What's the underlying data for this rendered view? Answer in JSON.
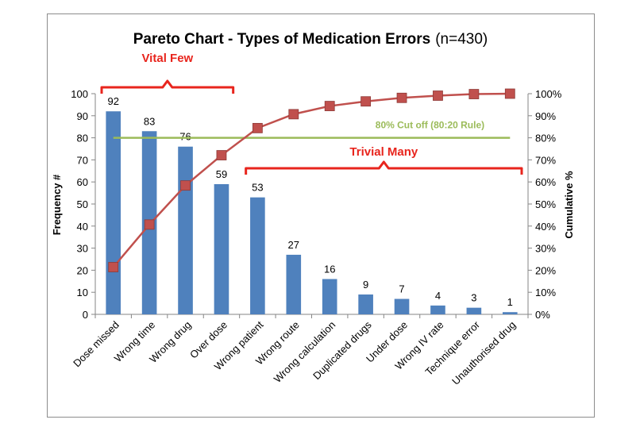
{
  "chart_data": {
    "type": "bar",
    "title": "Pareto Chart - Types of Medication Errors",
    "subtitle": "(n=430)",
    "ylabel": "Frequency #",
    "y2label": "Cumulative %",
    "xlabel": "",
    "ylim": [
      0,
      100
    ],
    "y2lim": [
      0,
      100
    ],
    "yticks": [
      "0",
      "10",
      "20",
      "30",
      "40",
      "50",
      "60",
      "70",
      "80",
      "90",
      "100"
    ],
    "y2ticks": [
      "0%",
      "10%",
      "20%",
      "30%",
      "40%",
      "50%",
      "60%",
      "70%",
      "80%",
      "90%",
      "100%"
    ],
    "grid": false,
    "categories": [
      "Dose missed",
      "Wrong time",
      "Wrong drug",
      "Over dose",
      "Wrong patient",
      "Wrong route",
      "Wrong calculation",
      "Duplicated drugs",
      "Under dose",
      "Wrong IV rate",
      "Technique error",
      "Unauthorised drug"
    ],
    "series": [
      {
        "name": "Frequency #",
        "type": "bar",
        "axis": "left",
        "color": "#4f81bd",
        "values": [
          92,
          83,
          76,
          59,
          53,
          27,
          16,
          9,
          7,
          4,
          3,
          1
        ]
      },
      {
        "name": "Cumulative %",
        "type": "line",
        "axis": "right",
        "color": "#c0504d",
        "values": [
          21.4,
          40.7,
          58.4,
          72.1,
          84.4,
          90.7,
          94.4,
          96.5,
          98.1,
          99.1,
          99.8,
          100
        ]
      }
    ],
    "cutoff": {
      "label": "80% Cut off  (80:20 Rule)",
      "value": 80,
      "color": "#9bbb59"
    },
    "annotations": [
      {
        "label": "Vital Few",
        "from": 0,
        "to": 3,
        "color": "#e8251d"
      },
      {
        "label": "Trivial Many",
        "from": 4,
        "to": 11,
        "color": "#e8251d"
      }
    ]
  }
}
